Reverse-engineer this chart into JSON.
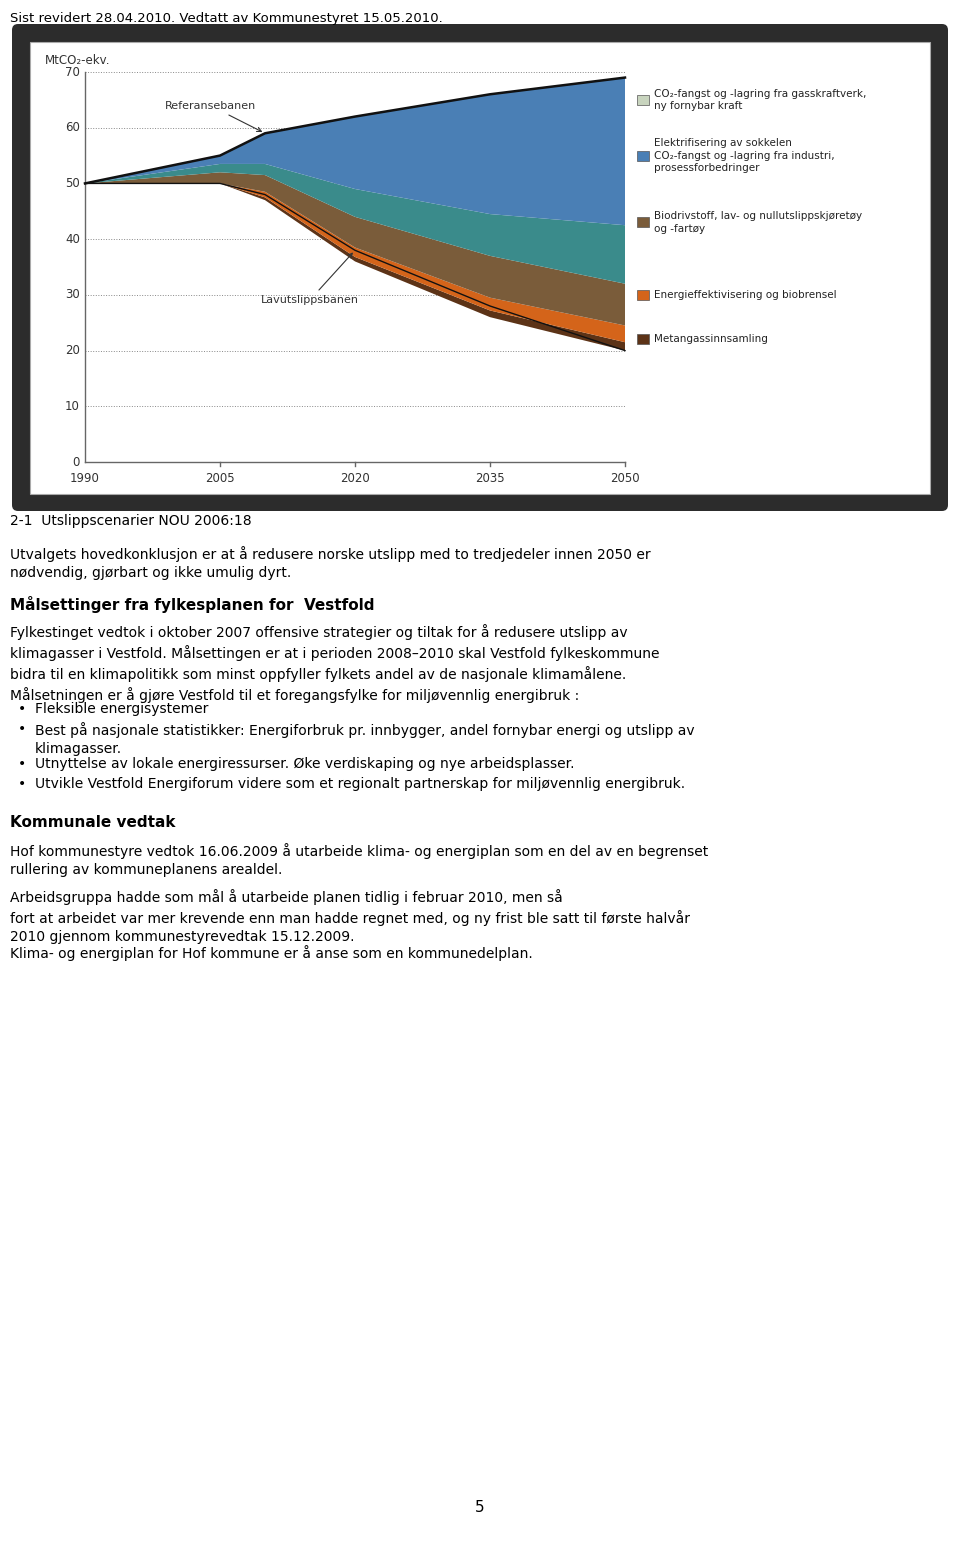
{
  "header_text": "Sist revidert 28.04.2010. Vedtatt av Kommunestyret 15.05.2010.",
  "figure_caption": "2-1  Utslippscenarier NOU 2006:18",
  "paragraph1": "Utvalgets hovedkonklusjon er at å redusere norske utslipp med to tredjedeler innen 2050 er\nnødvendig, gjørbart og ikke umulig dyrt.",
  "section_title": "Målsettinger fra fylkesplanen for  Vestfold",
  "paragraph2": "Fylkestinget vedtok i oktober 2007 offensive strategier og tiltak for å redusere utslipp av\nklimagasser i Vestfold. Målsettingen er at i perioden 2008–2010 skal Vestfold fylkeskommune\nbidra til en klimapolitikk som minst oppfyller fylkets andel av de nasjonale klimamålene.\nMålsetningen er å gjøre Vestfold til et foregangsfylke for miljøvennlig energibruk :",
  "bullets": [
    "Fleksible energisystemer",
    "Best på nasjonale statistikker: Energiforbruk pr. innbygger, andel fornybar energi og utslipp av\nklimagasser.",
    "Utnyttelse av lokale energiressurser. Øke verdiskaping og nye arbeidsplasser.",
    "Utvikle Vestfold Energiforum videre som et regionalt partnerskap for miljøvennlig energibruk."
  ],
  "section_title2": "Kommunale vedtak",
  "paragraph3": "Hof kommunestyre vedtok 16.06.2009 å utarbeide klima- og energiplan som en del av en begrenset\nrullering av kommuneplanens arealdel.",
  "paragraph4": "Arbeidsgruppa hadde som mål å utarbeide planen tidlig i februar 2010, men så\nfort at arbeidet var mer krevende enn man hadde regnet med, og ny frist ble satt til første halvår\n2010 gjennom kommunestyrevedtak 15.12.2009.",
  "paragraph5": "Klima- og energiplan for Hof kommune er å anse som en kommunedelplan.",
  "page_number": "5",
  "bg_color": "#ffffff",
  "text_color": "#000000",
  "header_fontsize": 9.5,
  "body_fontsize": 10,
  "title_fontsize": 11,
  "section_fontsize": 11,
  "chart": {
    "years": [
      1990,
      2005,
      2010,
      2020,
      2035,
      2050
    ],
    "ref_vals": [
      50,
      55,
      59,
      62,
      66,
      69
    ],
    "low_vals": [
      50,
      50,
      48,
      38,
      28,
      20
    ],
    "layer_colors": [
      "#5c3317",
      "#d4641a",
      "#4a6741",
      "#3a8b8b",
      "#3a6fa8",
      "#b8c8b0"
    ],
    "layer_fracs": [
      [
        50,
        50,
        47,
        36,
        26,
        20
      ],
      [
        50,
        50,
        47.5,
        36.8,
        27.2,
        21.5
      ],
      [
        50,
        50,
        48.5,
        38.5,
        29.5,
        24
      ],
      [
        50,
        52,
        51,
        43,
        36,
        31
      ],
      [
        50,
        53.5,
        53.5,
        48.5,
        44,
        42
      ],
      [
        50,
        55,
        59,
        62,
        66,
        69
      ]
    ],
    "layer_names": [
      "Metangassinnsamling",
      "Energieffektivisering og biobrensel",
      "Biodrivstoff, lav- og nullutslippskjøretøy\nog -fartøy",
      "Elektrifisering av sokkelen\nCO₂-fangst og -lagring fra industri,\nprosessforbedringer",
      "CO₂-fangst og -lagring fra gasskraftverk,\nny fornybar kraft",
      ""
    ]
  }
}
